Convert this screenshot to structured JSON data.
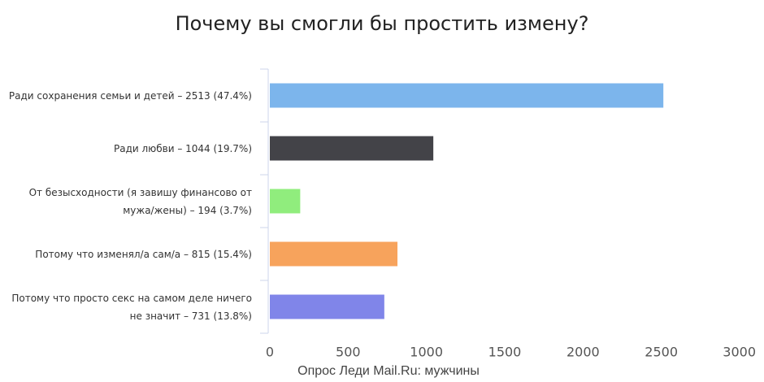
{
  "chart_data": {
    "type": "bar",
    "orientation": "horizontal",
    "title": "Почему вы смогли бы простить измену?",
    "subtitle": "Опрос Леди Mail.Ru: мужчины",
    "categories": [
      "Ради сохранения семьи и детей – 2513 (47.4%)",
      "Ради любви – 1044 (19.7%)",
      "От безысходности (я завишу финансово от мужа/жены) – 194 (3.7%)",
      "Потому что изменял/а сам/а – 815 (15.4%)",
      "Потому что просто секс на самом деле ничего не значит – 731 (13.8%)"
    ],
    "values": [
      2513,
      1044,
      194,
      815,
      731
    ],
    "colors": [
      "#7cb5ec",
      "#434348",
      "#90ed7d",
      "#f7a35c",
      "#8085e9"
    ],
    "xlim": [
      0,
      3000
    ],
    "xticks": [
      0,
      500,
      1000,
      1500,
      2000,
      2500,
      3000
    ]
  }
}
